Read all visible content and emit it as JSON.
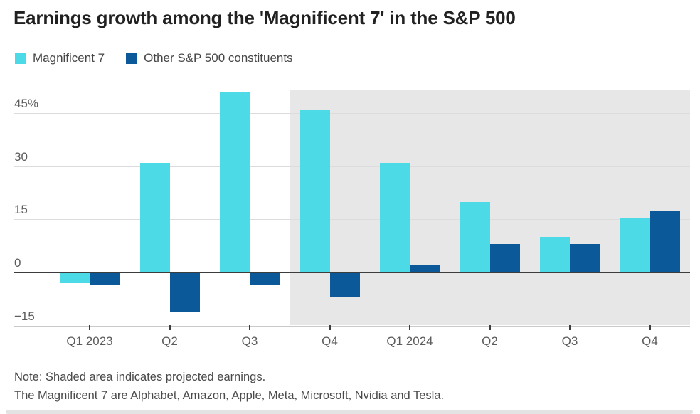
{
  "title": "Earnings growth among the 'Magnificent 7' in the S&P 500",
  "chart_data": {
    "type": "bar",
    "categories": [
      "Q1 2023",
      "Q2",
      "Q3",
      "Q4",
      "Q1 2024",
      "Q2",
      "Q3",
      "Q4"
    ],
    "series": [
      {
        "name": "Magnificent 7",
        "color": "#4BDAE6",
        "values": [
          -3,
          31,
          51,
          46,
          31,
          20,
          10,
          15.5
        ]
      },
      {
        "name": "Other S&P 500 constituents",
        "color": "#0B5998",
        "values": [
          -3.5,
          -11,
          -3.5,
          -7,
          2,
          8,
          8,
          17.5
        ]
      }
    ],
    "title": "Earnings growth among the 'Magnificent 7' in the S&P 500",
    "xlabel": "",
    "ylabel": "",
    "y_ticks": [
      {
        "label": "45%",
        "value": 45
      },
      {
        "label": "30",
        "value": 30
      },
      {
        "label": "15",
        "value": 15
      },
      {
        "label": "0",
        "value": 0
      },
      {
        "label": "−15",
        "value": -15
      }
    ],
    "ylim": [
      -15,
      51.5
    ],
    "grid": "horizontal",
    "legend_position": "top-left",
    "shaded_region": {
      "meaning": "projected earnings",
      "from_category": "Q4",
      "from_category_index": 3,
      "color": "#E7E7E7"
    }
  },
  "notes": {
    "line1": "Note: Shaded area indicates projected earnings.",
    "line2": "The Magnificent 7 are Alphabet, Amazon, Apple, Meta, Microsoft, Nvidia and Tesla."
  },
  "colors": {
    "magnificent7": "#4BDAE6",
    "other_constituents": "#0B5998",
    "projection_shade": "#E7E7E7",
    "gridline": "#DCDCDC",
    "zero_line": "#3D3D3D",
    "axis_text": "#5C5C5C",
    "title_text": "#212121",
    "note_text": "#4A4A4A"
  }
}
